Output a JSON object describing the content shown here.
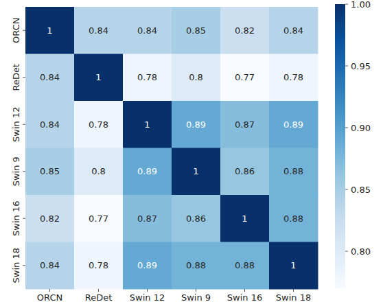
{
  "chart_data": {
    "type": "heatmap",
    "x_categories": [
      "ORCN",
      "ReDet",
      "Swin 12",
      "Swin 9",
      "Swin 16",
      "Swin 18"
    ],
    "y_categories": [
      "ORCN",
      "ReDet",
      "Swin 12",
      "Swin 9",
      "Swin 16",
      "Swin 18"
    ],
    "cells": [
      [
        1,
        0.84,
        0.84,
        0.85,
        0.82,
        0.84
      ],
      [
        0.84,
        1,
        0.78,
        0.8,
        0.77,
        0.78
      ],
      [
        0.84,
        0.78,
        1,
        0.89,
        0.87,
        0.89
      ],
      [
        0.85,
        0.8,
        0.89,
        1,
        0.86,
        0.88
      ],
      [
        0.82,
        0.77,
        0.87,
        0.86,
        1,
        0.88
      ],
      [
        0.84,
        0.78,
        0.89,
        0.88,
        0.88,
        1
      ]
    ],
    "color_range": [
      0.77,
      1
    ],
    "color_ticks": [
      {
        "value": 1,
        "label": "1.00"
      },
      0.95,
      {
        "value": 0.9,
        "label": "0.90"
      },
      0.85,
      {
        "value": 0.8,
        "label": "0.80"
      }
    ],
    "color": "Blues",
    "data_labels": true
  }
}
